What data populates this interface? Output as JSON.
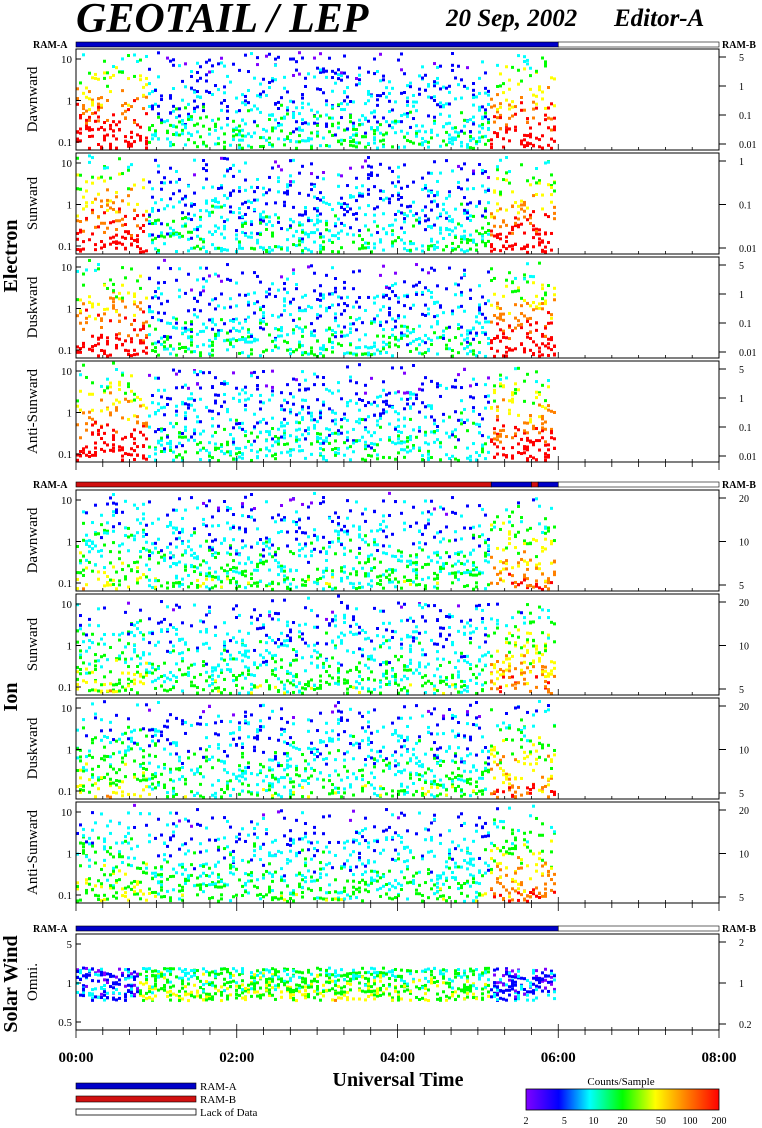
{
  "header": {
    "title": "GEOTAIL / LEP",
    "date": "20 Sep, 2002",
    "editor": "Editor-A"
  },
  "chart_data": {
    "type": "heatmap",
    "xlabel": "Universal Time",
    "xlim": [
      "00:00",
      "08:00"
    ],
    "x_ticks": [
      "00:00",
      "02:00",
      "04:00",
      "06:00",
      "08:00"
    ],
    "data_end": "06:00",
    "ram_left_label": "RAM-A",
    "ram_right_label": "RAM-B",
    "groups": [
      {
        "name": "Electron",
        "ram_bar": [
          {
            "start": "00:00",
            "end": "06:00",
            "mode": "RAM-A"
          },
          {
            "start": "06:00",
            "end": "08:00",
            "mode": "Lack of Data"
          }
        ],
        "panels": [
          {
            "name": "Dawnward",
            "left_ticks": [
              "10",
              "1",
              "0.1"
            ],
            "right_ticks": [
              "5",
              "1",
              "0.1",
              "0.01"
            ]
          },
          {
            "name": "Sunward",
            "left_ticks": [
              "10",
              "1",
              "0.1"
            ],
            "right_ticks": [
              "1",
              "0.1",
              "0.01"
            ]
          },
          {
            "name": "Duskward",
            "left_ticks": [
              "10",
              "1",
              "0.1"
            ],
            "right_ticks": [
              "5",
              "1",
              "0.1",
              "0.01"
            ]
          },
          {
            "name": "Anti-Sunward",
            "left_ticks": [
              "10",
              "1",
              "0.1"
            ],
            "right_ticks": [
              "5",
              "1",
              "0.1",
              "0.01"
            ]
          }
        ]
      },
      {
        "name": "Ion",
        "ram_bar": [
          {
            "start": "00:00",
            "end": "05:10",
            "mode": "RAM-B"
          },
          {
            "start": "05:10",
            "end": "05:40",
            "mode": "RAM-A"
          },
          {
            "start": "05:40",
            "end": "05:45",
            "mode": "RAM-B"
          },
          {
            "start": "05:45",
            "end": "06:00",
            "mode": "RAM-A"
          },
          {
            "start": "06:00",
            "end": "08:00",
            "mode": "Lack of Data"
          }
        ],
        "panels": [
          {
            "name": "Dawnward",
            "left_ticks": [
              "10",
              "1",
              "0.1"
            ],
            "right_ticks": [
              "20",
              "10",
              "5"
            ]
          },
          {
            "name": "Sunward",
            "left_ticks": [
              "10",
              "1",
              "0.1"
            ],
            "right_ticks": [
              "20",
              "10",
              "5"
            ]
          },
          {
            "name": "Duskward",
            "left_ticks": [
              "10",
              "1",
              "0.1"
            ],
            "right_ticks": [
              "20",
              "10",
              "5"
            ]
          },
          {
            "name": "Anti-Sunward",
            "left_ticks": [
              "10",
              "1",
              "0.1"
            ],
            "right_ticks": [
              "20",
              "10",
              "5"
            ]
          }
        ]
      },
      {
        "name": "Solar Wind",
        "ram_bar": [
          {
            "start": "00:00",
            "end": "06:00",
            "mode": "RAM-A"
          },
          {
            "start": "06:00",
            "end": "08:00",
            "mode": "Lack of Data"
          }
        ],
        "panels": [
          {
            "name": "Omni.",
            "left_ticks": [
              "5",
              "1",
              "0.5"
            ],
            "right_ticks": [
              "2",
              "1",
              "0.2"
            ]
          }
        ]
      }
    ],
    "legend": {
      "items": [
        {
          "label": "RAM-A",
          "color": "#0000c8"
        },
        {
          "label": "RAM-B",
          "color": "#d01010"
        },
        {
          "label": "Lack of Data",
          "color": "#ffffff"
        }
      ]
    },
    "colorbar": {
      "title": "Counts/Sample",
      "ticks": [
        "2",
        "5",
        "10",
        "20",
        "50",
        "100",
        "200"
      ],
      "colors": [
        "#8000ff",
        "#0000ff",
        "#00ffff",
        "#00ff00",
        "#ffff00",
        "#ff8000",
        "#ff0000"
      ]
    }
  }
}
